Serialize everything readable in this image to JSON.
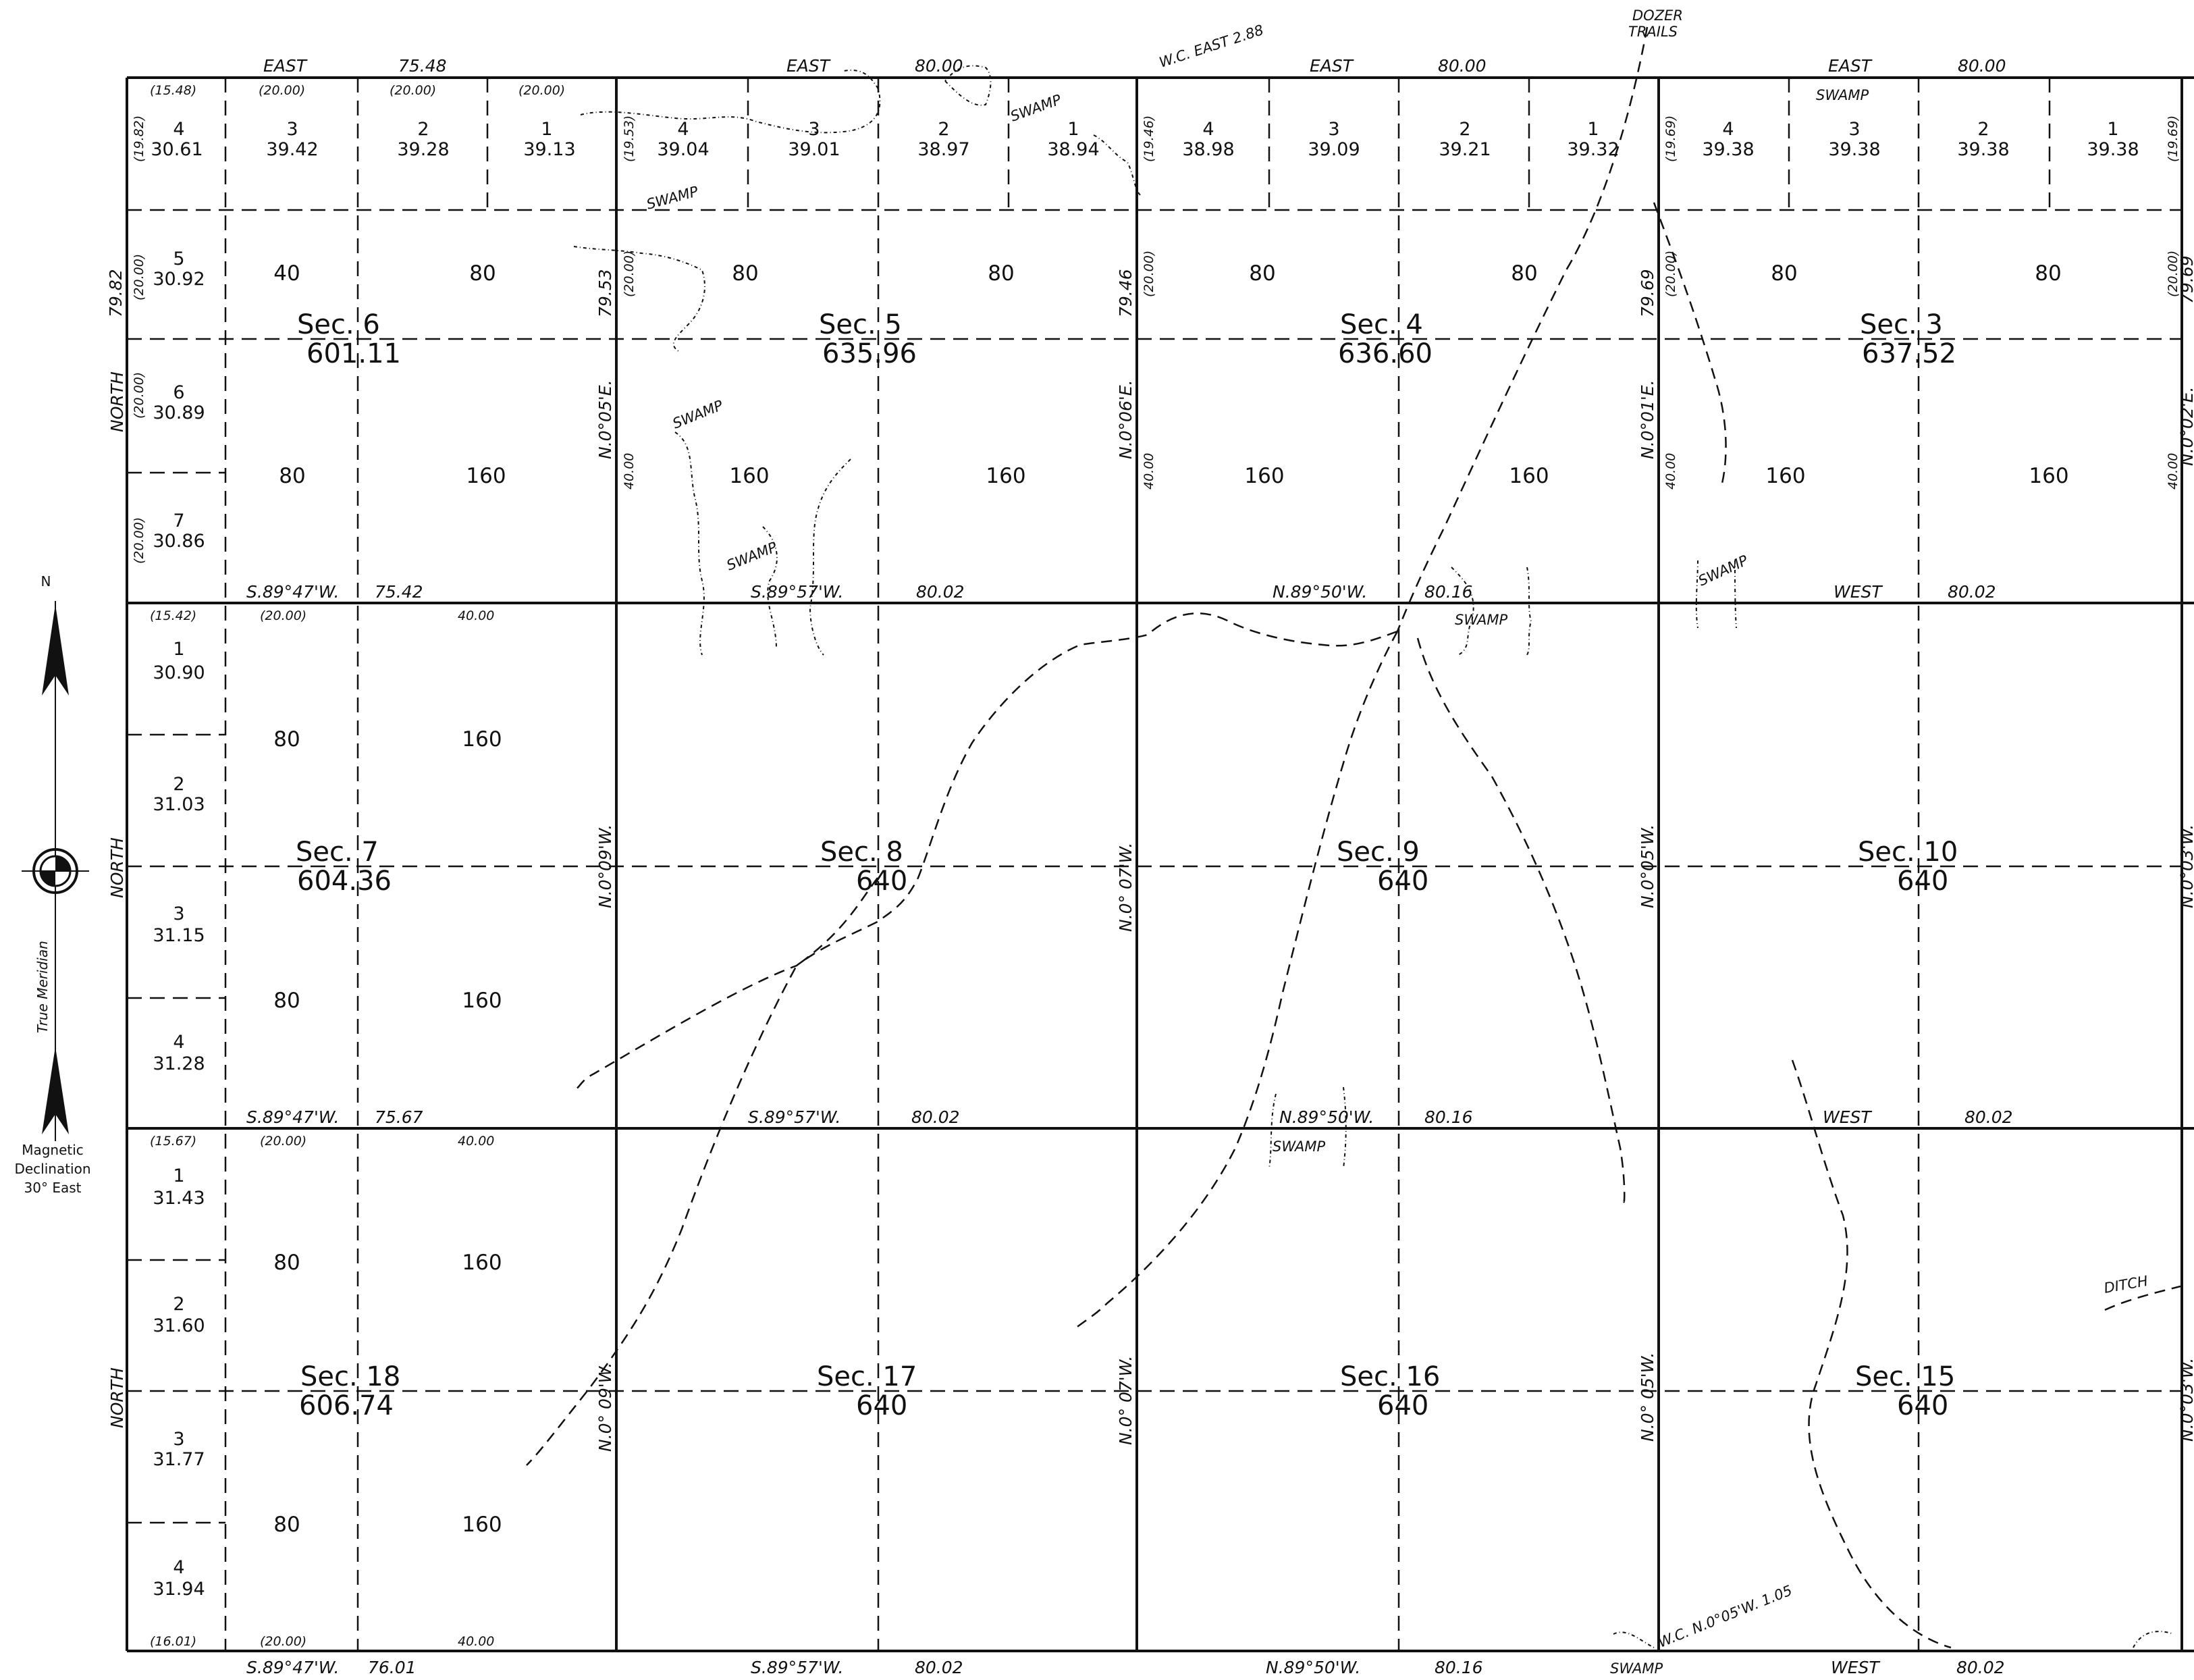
{
  "sections": [
    {
      "id": "sec6",
      "label": "Sec. 6",
      "area": "601.11"
    },
    {
      "id": "sec5",
      "label": "Sec. 5",
      "area": "635.96"
    },
    {
      "id": "sec4",
      "label": "Sec. 4",
      "area": "636.60"
    },
    {
      "id": "sec3",
      "label": "Sec. 3",
      "area": "637.52"
    },
    {
      "id": "sec7",
      "label": "Sec. 7",
      "area": "604.36"
    },
    {
      "id": "sec8",
      "label": "Sec. 8",
      "area": "640"
    },
    {
      "id": "sec9",
      "label": "Sec. 9",
      "area": "640"
    },
    {
      "id": "sec10",
      "label": "Sec. 10",
      "area": "640"
    },
    {
      "id": "sec18",
      "label": "Sec. 18",
      "area": "606.74"
    },
    {
      "id": "sec17",
      "label": "Sec. 17",
      "area": "640"
    },
    {
      "id": "sec16",
      "label": "Sec. 16",
      "area": "640"
    },
    {
      "id": "sec15",
      "label": "Sec. 15",
      "area": "640"
    }
  ],
  "top_lots": {
    "sec6": [
      {
        "n": "4",
        "a": "30.61"
      },
      {
        "n": "3",
        "a": "39.42"
      },
      {
        "n": "2",
        "a": "39.28"
      },
      {
        "n": "1",
        "a": "39.13"
      }
    ],
    "sec5": [
      {
        "n": "4",
        "a": "39.04"
      },
      {
        "n": "3",
        "a": "39.01"
      },
      {
        "n": "2",
        "a": "38.97"
      },
      {
        "n": "1",
        "a": "38.94"
      }
    ],
    "sec4": [
      {
        "n": "4",
        "a": "38.98"
      },
      {
        "n": "3",
        "a": "39.09"
      },
      {
        "n": "2",
        "a": "39.21"
      },
      {
        "n": "1",
        "a": "39.32"
      }
    ],
    "sec3": [
      {
        "n": "4",
        "a": "39.38"
      },
      {
        "n": "3",
        "a": "39.38"
      },
      {
        "n": "2",
        "a": "39.38"
      },
      {
        "n": "1",
        "a": "39.38"
      }
    ]
  },
  "west_lots": {
    "sec6": [
      {
        "n": "5",
        "a": "30.92"
      },
      {
        "n": "6",
        "a": "30.89"
      },
      {
        "n": "7",
        "a": "30.86"
      }
    ],
    "sec7": [
      {
        "n": "1",
        "a": "30.90"
      },
      {
        "n": "2",
        "a": "31.03"
      },
      {
        "n": "3",
        "a": "31.15"
      },
      {
        "n": "4",
        "a": "31.28"
      }
    ],
    "sec18": [
      {
        "n": "1",
        "a": "31.43"
      },
      {
        "n": "2",
        "a": "31.60"
      },
      {
        "n": "3",
        "a": "31.77"
      },
      {
        "n": "4",
        "a": "31.94"
      }
    ]
  },
  "acreages": {
    "q40": "40",
    "q80": "80",
    "q160": "160"
  },
  "bearings": {
    "east": "EAST",
    "west": "WEST",
    "north": "NORTH",
    "d7548": "75.48",
    "d8000": "80.00",
    "d8002": "80.02",
    "d8016": "80.16",
    "d7542": "75.42",
    "d7567": "75.67",
    "d7601": "76.01",
    "d4000": "40.00",
    "s8947w": "S.89°47'W.",
    "s8957w": "S.89°57'W.",
    "n8950w": "N.89°50'W.",
    "n005e": "N.0°05'E.",
    "n006e": "N.0°06'E.",
    "n001e": "N.0°01'E.",
    "n002e": "N.0°02'E.",
    "n009w": "N.0°09'W.",
    "n007w": "N.0° 07'W.",
    "n005w": "N.0°05'W.",
    "n003w": "N.0°03'W.",
    "n009w_b": "N.0° 09'W.",
    "n005w_b": "N.0° 05'W.",
    "d7982": "79.82",
    "d7953": "79.53",
    "d7946": "79.46",
    "d7969": "79.69"
  },
  "paren": {
    "p1548": "(15.48)",
    "p2000": "(20.00)",
    "p1982": "(19.82)",
    "p1953": "(19.53)",
    "p1946": "(19.46)",
    "p1969": "(19.69)",
    "p1542": "(15.42)",
    "p1567": "(15.67)",
    "p1601": "(16.01)"
  },
  "notes": {
    "swamp": "SWAMP",
    "dozer1": "DOZER",
    "dozer2": "TRAILS",
    "wc_east": "W.C. EAST 2.88",
    "wc_north": "W.C. N.0°05'W. 1.05",
    "ditch": "DITCH"
  },
  "legend": {
    "n": "N",
    "true_meridian": "True  Meridian",
    "magnetic1": "Magnetic",
    "magnetic2": "Declination",
    "magnetic3": "30° East"
  }
}
